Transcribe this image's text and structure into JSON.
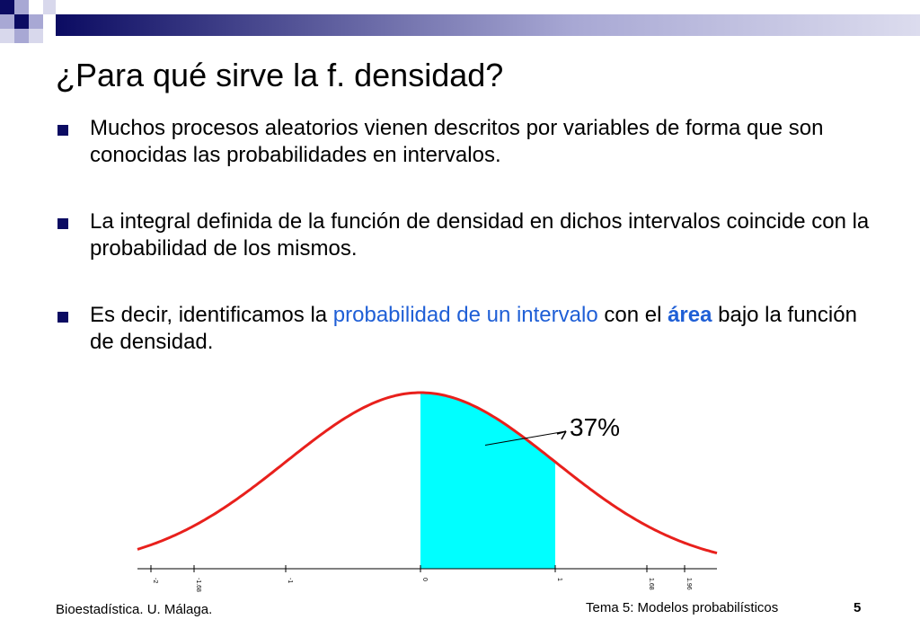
{
  "slide": {
    "title": "¿Para qué sirve la f. densidad?",
    "bullets": [
      {
        "text": "Muchos procesos aleatorios vienen descritos por variables de forma que son conocidas las probabilidades en intervalos."
      },
      {
        "text": "La integral definida de la función de densidad en dichos intervalos coincide con la probabilidad de los mismos."
      },
      {
        "pre": "Es decir, identificamos la ",
        "highlight": "probabilidad de un intervalo",
        "mid": " con el ",
        "bold_highlight": "área",
        "post": " bajo la función de densidad."
      }
    ]
  },
  "chart_data": {
    "type": "area",
    "series_description": "standard normal density curve with shaded area between 0 and 1",
    "shaded_interval": [
      0,
      1
    ],
    "annotation": "37%",
    "xlim": [
      -2.1,
      2.2
    ],
    "x_ticks": [
      "-2",
      "-1.68",
      "-1",
      "0",
      "1",
      "1.68",
      "1.96"
    ],
    "x_tick_values": [
      -2,
      -1.68,
      -1,
      0,
      1,
      1.68,
      1.96
    ],
    "colors": {
      "curve": "#e8201c",
      "shade": "#00ffff",
      "axis": "#000000"
    }
  },
  "footer": {
    "left": "Bioestadística. U. Málaga.",
    "right": "Tema 5: Modelos probabilísticos",
    "page": "5"
  },
  "theme": {
    "accent_dark": "#0b0b62",
    "accent_light": "#a8a8d4",
    "link_blue": "#1f5fd6"
  }
}
